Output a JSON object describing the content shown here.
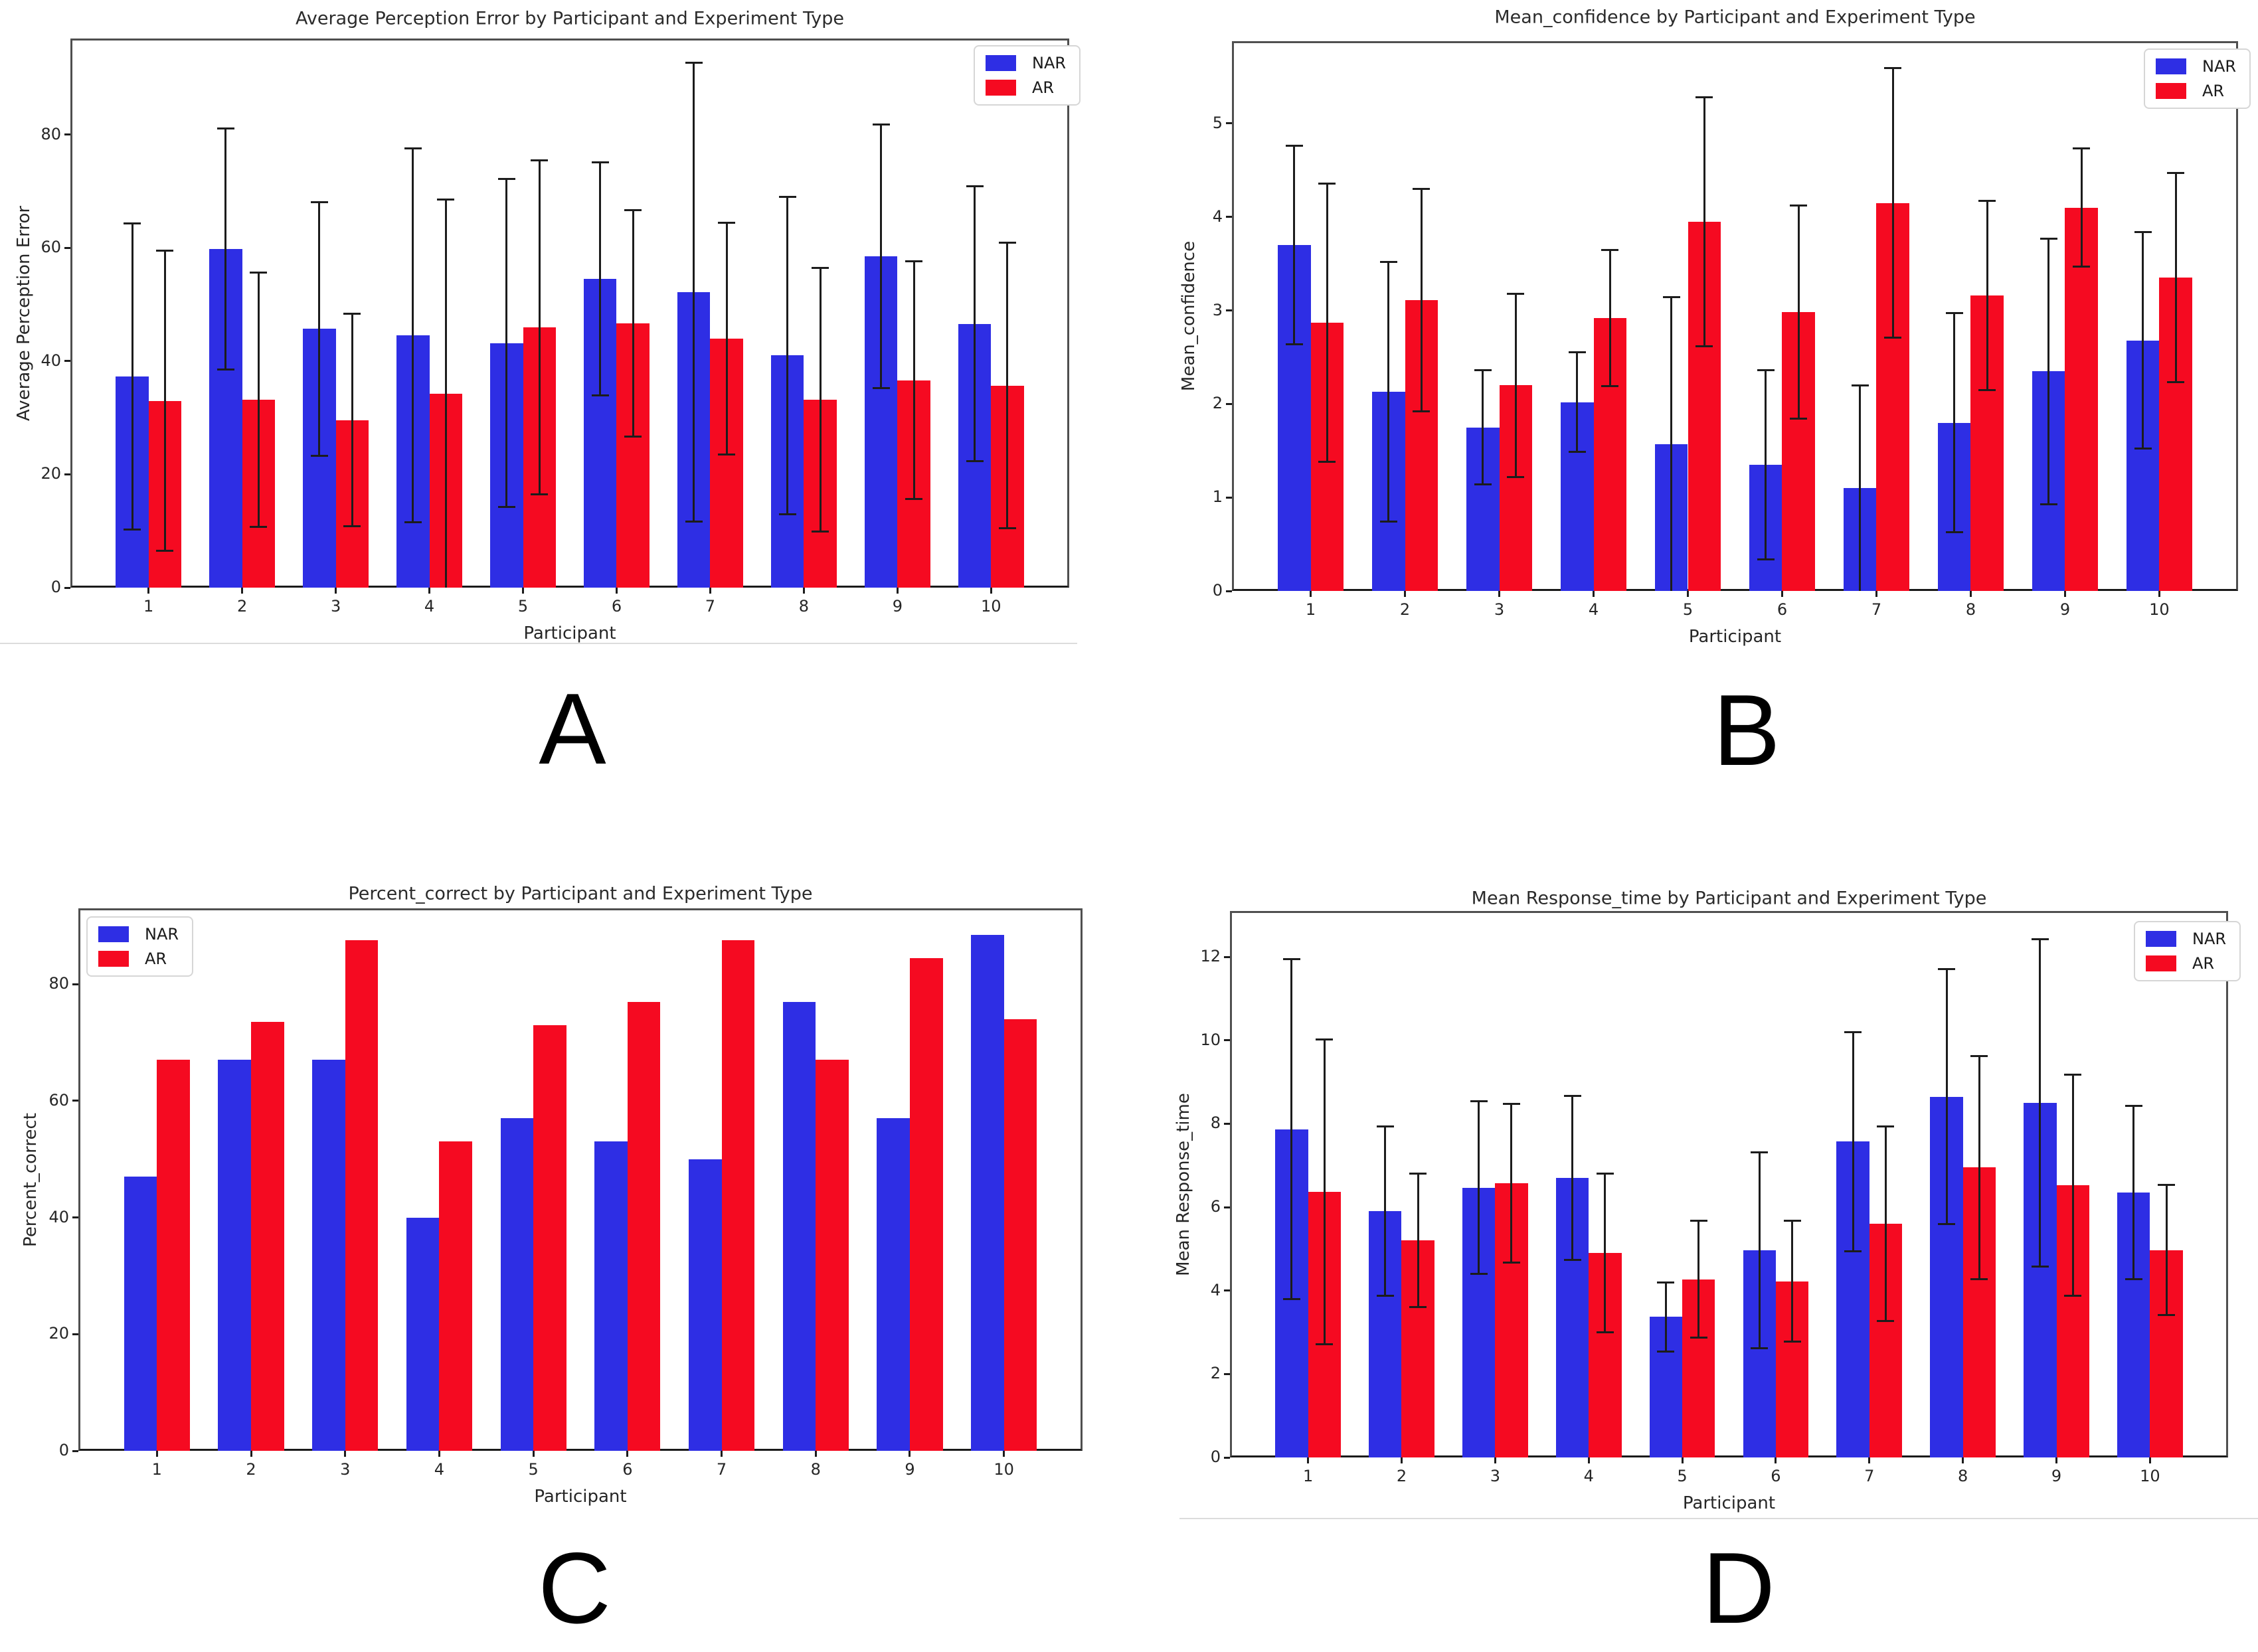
{
  "figure": {
    "background": "#ffffff"
  },
  "panel_labels": {
    "a": "A",
    "b": "B",
    "c": "C",
    "d": "D"
  },
  "colors": {
    "nar": "#2e2ee4",
    "ar": "#f50a21",
    "error_bar": "#1c1c1c",
    "spine": "#4f4f4f",
    "axis_line": "#1a1a1a",
    "divider": "#dcdcdc",
    "text": "#262626"
  },
  "legend": {
    "items": [
      {
        "label": "NAR"
      },
      {
        "label": "AR"
      }
    ]
  },
  "chart_data": [
    {
      "id": "A",
      "type": "bar",
      "title": "Average Perception Error by Participant and Experiment Type",
      "xlabel": "Participant",
      "ylabel": "Average Perception Error",
      "categories": [
        "1",
        "2",
        "3",
        "4",
        "5",
        "6",
        "7",
        "8",
        "9",
        "10"
      ],
      "yticks": [
        0,
        20,
        40,
        60,
        80
      ],
      "ylim": [
        0,
        97
      ],
      "grid": false,
      "legend_position": "top-right",
      "error_bars": true,
      "series": [
        {
          "name": "NAR",
          "color": "#2e2ee4",
          "values": [
            37.3,
            59.8,
            45.7,
            44.6,
            43.2,
            54.5,
            52.2,
            41.0,
            58.5,
            46.6
          ],
          "errors": [
            27.0,
            21.3,
            22.4,
            33.0,
            29.0,
            20.6,
            40.5,
            28.0,
            23.3,
            24.3
          ]
        },
        {
          "name": "AR",
          "color": "#f50a21",
          "values": [
            33.0,
            33.2,
            29.6,
            34.3,
            46.0,
            46.7,
            44.0,
            33.2,
            36.6,
            35.7
          ],
          "errors": [
            26.5,
            22.5,
            18.8,
            34.3,
            29.5,
            20.0,
            20.5,
            23.3,
            21.0,
            25.2
          ]
        }
      ]
    },
    {
      "id": "B",
      "type": "bar",
      "title": "Mean_confidence by Participant and Experiment Type",
      "xlabel": "Participant",
      "ylabel": "Mean_confidence",
      "categories": [
        "1",
        "2",
        "3",
        "4",
        "5",
        "6",
        "7",
        "8",
        "9",
        "10"
      ],
      "yticks": [
        0,
        1,
        2,
        3,
        4,
        5
      ],
      "ylim": [
        0,
        5.88
      ],
      "grid": false,
      "legend_position": "top-right",
      "error_bars": true,
      "series": [
        {
          "name": "NAR",
          "color": "#2e2ee4",
          "values": [
            3.7,
            2.13,
            1.75,
            2.02,
            1.57,
            1.35,
            1.1,
            1.8,
            2.35,
            2.68
          ],
          "errors": [
            1.06,
            1.39,
            0.61,
            0.53,
            1.57,
            1.01,
            1.1,
            1.17,
            1.42,
            1.16
          ]
        },
        {
          "name": "AR",
          "color": "#f50a21",
          "values": [
            2.87,
            3.11,
            2.2,
            2.92,
            3.95,
            2.98,
            4.15,
            3.16,
            4.1,
            3.35
          ],
          "errors": [
            1.49,
            1.19,
            0.98,
            0.73,
            1.33,
            1.14,
            1.44,
            1.01,
            0.63,
            1.12
          ]
        }
      ]
    },
    {
      "id": "C",
      "type": "bar",
      "title": "Percent_correct by Participant and Experiment Type",
      "xlabel": "Participant",
      "ylabel": "Percent_correct",
      "categories": [
        "1",
        "2",
        "3",
        "4",
        "5",
        "6",
        "7",
        "8",
        "9",
        "10"
      ],
      "yticks": [
        0,
        20,
        40,
        60,
        80
      ],
      "ylim": [
        0,
        93
      ],
      "grid": false,
      "legend_position": "top-left",
      "error_bars": false,
      "series": [
        {
          "name": "NAR",
          "color": "#2e2ee4",
          "values": [
            47,
            67,
            67,
            40,
            57,
            53,
            50,
            77,
            57,
            88.5
          ]
        },
        {
          "name": "AR",
          "color": "#f50a21",
          "values": [
            67,
            73.5,
            87.5,
            53,
            73,
            77,
            87.5,
            67,
            84.5,
            74
          ]
        }
      ]
    },
    {
      "id": "D",
      "type": "bar",
      "title": "Mean Response_time by Participant and Experiment Type",
      "xlabel": "Participant",
      "ylabel": "Mean Response_time",
      "categories": [
        "1",
        "2",
        "3",
        "4",
        "5",
        "6",
        "7",
        "8",
        "9",
        "10"
      ],
      "yticks": [
        0,
        2,
        4,
        6,
        8,
        10,
        12
      ],
      "ylim": [
        0,
        13.1
      ],
      "grid": false,
      "legend_position": "top-right",
      "error_bars": true,
      "series": [
        {
          "name": "NAR",
          "color": "#2e2ee4",
          "values": [
            7.87,
            5.9,
            6.47,
            6.7,
            3.37,
            4.97,
            7.57,
            8.65,
            8.5,
            6.35
          ],
          "errors": [
            4.08,
            2.03,
            2.07,
            1.97,
            0.83,
            2.35,
            2.62,
            3.05,
            3.93,
            2.08
          ]
        },
        {
          "name": "AR",
          "color": "#f50a21",
          "values": [
            6.37,
            5.2,
            6.57,
            4.9,
            4.27,
            4.22,
            5.6,
            6.95,
            6.52,
            4.97
          ],
          "errors": [
            3.65,
            1.6,
            1.9,
            1.9,
            1.4,
            1.45,
            2.33,
            2.68,
            2.65,
            1.56
          ]
        }
      ]
    }
  ]
}
